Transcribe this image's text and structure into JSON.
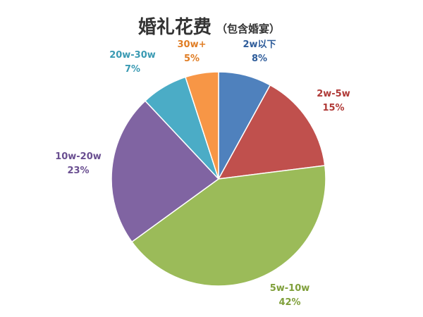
{
  "chart_data": {
    "type": "pie",
    "title": "婚礼花费",
    "subtitle": "（包含婚宴）",
    "slices": [
      {
        "label": "2w以下",
        "value": 8,
        "display": "8%",
        "color": "#4f81bd"
      },
      {
        "label": "2w-5w",
        "value": 15,
        "display": "15%",
        "color": "#c0504d"
      },
      {
        "label": "5w-10w",
        "value": 42,
        "display": "42%",
        "color": "#9bbb59"
      },
      {
        "label": "10w-20w",
        "value": 23,
        "display": "23%",
        "color": "#8064a2"
      },
      {
        "label": "20w-30w",
        "value": 7,
        "display": "7%",
        "color": "#4bacc6"
      },
      {
        "label": "30w+",
        "value": 5,
        "display": "5%",
        "color": "#f79646"
      }
    ],
    "label_colors": [
      "#2e5c9a",
      "#b03a37",
      "#7f9f3a",
      "#6a4f91",
      "#3a9ab3",
      "#e07d24"
    ],
    "start_angle_deg": 0,
    "direction": "clockwise"
  }
}
